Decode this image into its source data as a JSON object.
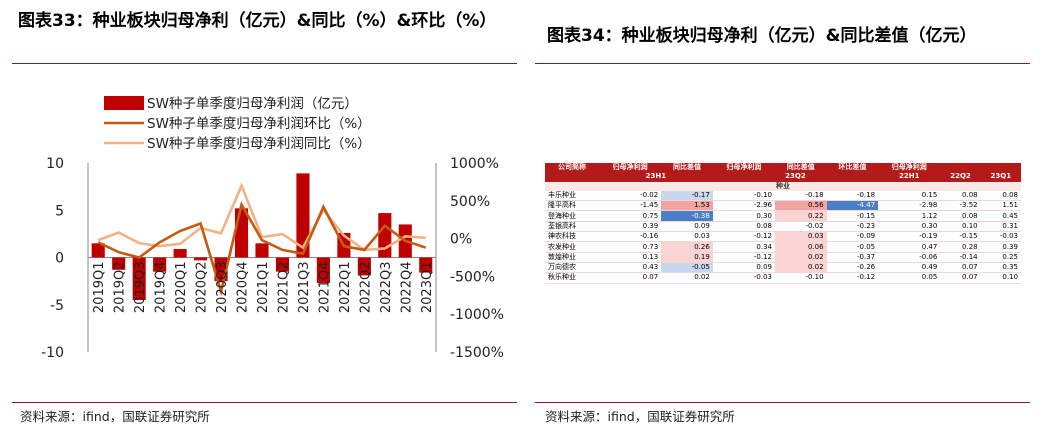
{
  "left": {
    "title": "图表33：种业板块归母净利（亿元）&同比（%）&环比（%）",
    "source": "资料来源：ifind，国联证券研究所"
  },
  "right": {
    "title": "图表34：种业板块归母净利（亿元）&同比差值（亿元）",
    "source": "资料来源：ifind，国联证券研究所"
  },
  "colors": {
    "bar": "#c00000",
    "qoq": "#c55a11",
    "yoy": "#f4b183",
    "rule": "#7f1d2e",
    "header": "#b31b1b",
    "red_cell": "#f4a3a3",
    "blue_cell": "#4a7fc8",
    "light_blue_cell": "#c9d7ef",
    "light_red_cell": "#fbd3d3"
  },
  "chart_data": {
    "type": "bar",
    "categories": [
      "2019Q1",
      "2019Q2",
      "2019Q3",
      "2019Q4",
      "2020Q1",
      "2020Q2",
      "2020Q3",
      "2020Q4",
      "2021Q1",
      "2021Q2",
      "2021Q3",
      "2021Q4",
      "2022Q1",
      "2022Q2",
      "2022Q3",
      "2022Q4",
      "2023Q1"
    ],
    "series": [
      {
        "name": "SW种子单季度归母净利润（亿元）",
        "kind": "bar",
        "axis": "left",
        "values": [
          1.5,
          -1.3,
          -4.5,
          -1.5,
          0.9,
          -0.3,
          -2.5,
          5.2,
          1.5,
          -1.5,
          8.9,
          -2.7,
          2.6,
          -1.9,
          4.7,
          3.5,
          -1.6
        ]
      },
      {
        "name": "SW种子单季度归母净利润环比（%）",
        "kind": "line",
        "axis": "right",
        "values": [
          -50,
          -180,
          -250,
          -50,
          100,
          200,
          -700,
          450,
          -20,
          -150,
          -200,
          420,
          -100,
          -150,
          170,
          -30,
          -120
        ]
      },
      {
        "name": "SW种子单季度归母净利润同比（%）",
        "kind": "line",
        "axis": "right",
        "values": [
          -20,
          80,
          -60,
          -100,
          -70,
          140,
          70,
          700,
          20,
          60,
          -120,
          380,
          40,
          -150,
          -130,
          30,
          10
        ]
      }
    ],
    "y_left": {
      "ticks": [
        "10",
        "5",
        "0",
        "-5",
        "-10"
      ],
      "min": -10,
      "max": 10
    },
    "y_right": {
      "ticks": [
        "1000%",
        "500%",
        "0%",
        "-500%",
        "-1000%",
        "-1500%"
      ],
      "min": -1500,
      "max": 1000
    },
    "legend_position": "top-left"
  },
  "table": {
    "header1": [
      "公司简称",
      "归母净利润",
      "同比差值",
      "归母净利润",
      "同比差值",
      "环比差值",
      "归母净利润",
      "",
      ""
    ],
    "header2": [
      "",
      "23H1",
      "",
      "23Q2",
      "",
      "",
      "22H1",
      "22Q2",
      "23Q1"
    ],
    "section": "种业",
    "rows": [
      {
        "name": "丰乐种业",
        "v": [
          "-0.02",
          "-0.17",
          "-0.10",
          "-0.18",
          "-0.18",
          "0.15",
          "0.08",
          "0.08"
        ],
        "c": [
          "",
          "lb",
          "",
          "",
          "",
          "",
          "",
          ""
        ]
      },
      {
        "name": "隆平高科",
        "v": [
          "-1.45",
          "1.53",
          "-2.96",
          "0.56",
          "-4.47",
          "-2.98",
          "-3.52",
          "1.51"
        ],
        "c": [
          "",
          "r",
          "",
          "r",
          "b",
          "",
          "",
          ""
        ]
      },
      {
        "name": "登海种业",
        "v": [
          "0.75",
          "-0.38",
          "0.30",
          "0.22",
          "-0.15",
          "1.12",
          "0.08",
          "0.45"
        ],
        "c": [
          "",
          "b",
          "",
          "lr",
          "",
          "",
          "",
          ""
        ]
      },
      {
        "name": "荃银高科",
        "v": [
          "0.39",
          "0.09",
          "0.08",
          "-0.02",
          "-0.23",
          "0.30",
          "0.10",
          "0.31"
        ],
        "c": [
          "",
          "",
          "",
          "",
          "",
          "",
          "",
          ""
        ]
      },
      {
        "name": "神农科技",
        "v": [
          "-0.16",
          "0.03",
          "-0.12",
          "0.03",
          "-0.09",
          "-0.19",
          "-0.15",
          "-0.03"
        ],
        "c": [
          "",
          "",
          "",
          "lr",
          "",
          "",
          "",
          ""
        ]
      },
      {
        "name": "农发种业",
        "v": [
          "0.73",
          "0.26",
          "0.34",
          "0.06",
          "-0.05",
          "0.47",
          "0.28",
          "0.39"
        ],
        "c": [
          "",
          "lr",
          "",
          "lr",
          "",
          "",
          "",
          ""
        ]
      },
      {
        "name": "敦煌种业",
        "v": [
          "0.13",
          "0.19",
          "-0.12",
          "0.02",
          "-0.37",
          "-0.06",
          "-0.14",
          "0.25"
        ],
        "c": [
          "",
          "lr",
          "",
          "lr",
          "",
          "",
          "",
          ""
        ]
      },
      {
        "name": "万向德农",
        "v": [
          "0.43",
          "-0.05",
          "0.09",
          "0.02",
          "-0.26",
          "0.49",
          "0.07",
          "0.35"
        ],
        "c": [
          "",
          "lb",
          "",
          "lr",
          "",
          "",
          "",
          ""
        ]
      },
      {
        "name": "秋乐种业",
        "v": [
          "0.07",
          "0.02",
          "-0.03",
          "-0.10",
          "-0.12",
          "0.05",
          "0.07",
          "0.10"
        ],
        "c": [
          "",
          "",
          "",
          "",
          "",
          "",
          "",
          ""
        ]
      }
    ]
  }
}
